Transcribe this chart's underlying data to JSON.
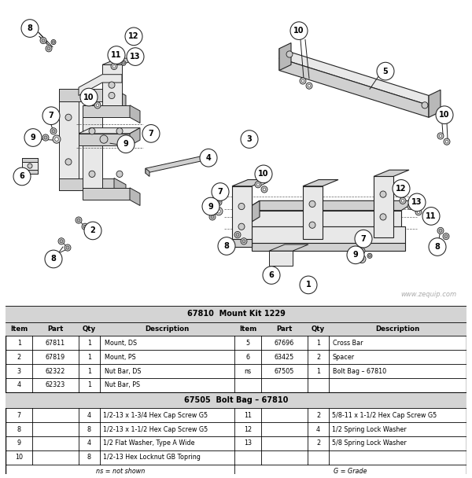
{
  "title": "67810  Mount Kit 1229",
  "watermark": "www.zequip.com",
  "section1_rows": [
    [
      "1",
      "67811",
      "1",
      "Mount, DS"
    ],
    [
      "2",
      "67819",
      "1",
      "Mount, PS"
    ],
    [
      "3",
      "62322",
      "1",
      "Nut Bar, DS"
    ],
    [
      "4",
      "62323",
      "1",
      "Nut Bar, PS"
    ]
  ],
  "section1_rows_right": [
    [
      "5",
      "67696",
      "1",
      "Cross Bar"
    ],
    [
      "6",
      "63425",
      "2",
      "Spacer"
    ],
    [
      "ns",
      "67505",
      "1",
      "Bolt Bag – 67810"
    ],
    [
      "",
      "",
      "",
      ""
    ]
  ],
  "section2_title": "67505  Bolt Bag – 67810",
  "section2_rows_left": [
    [
      "7",
      "",
      "4",
      "1/2-13 x 1-3/4 Hex Cap Screw G5"
    ],
    [
      "8",
      "",
      "8",
      "1/2-13 x 1-1/2 Hex Cap Screw G5"
    ],
    [
      "9",
      "",
      "4",
      "1/2 Flat Washer, Type A Wide"
    ],
    [
      "10",
      "",
      "8",
      "1/2-13 Hex Locknut GB Topring"
    ]
  ],
  "section2_rows_right": [
    [
      "11",
      "",
      "2",
      "5/8-11 x 1-1/2 Hex Cap Screw G5"
    ],
    [
      "12",
      "",
      "4",
      "1/2 Spring Lock Washer"
    ],
    [
      "13",
      "",
      "2",
      "5/8 Spring Lock Washer"
    ],
    [
      "",
      "",
      "",
      ""
    ]
  ],
  "footer_left": "ns = not shown",
  "footer_right": "G = Grade",
  "bg_color": "#ffffff"
}
